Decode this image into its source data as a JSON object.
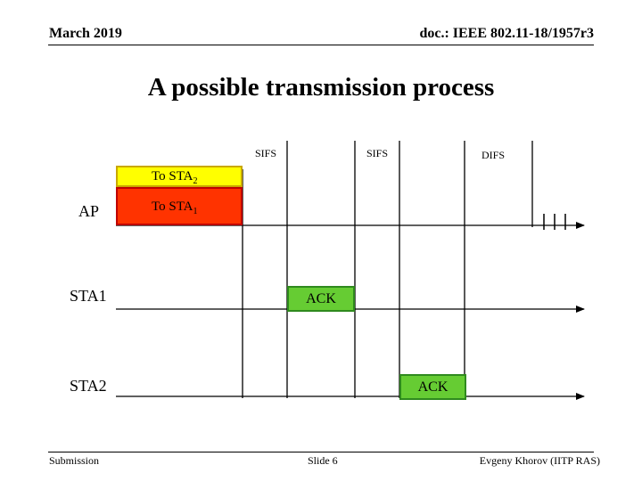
{
  "header": {
    "date": "March 2019",
    "doc_id": "doc.: IEEE 802.11-18/1957r3"
  },
  "title": "A possible transmission process",
  "intervals": {
    "sifs_1": "SIFS",
    "sifs_2": "SIFS",
    "difs": "DIFS"
  },
  "stations": {
    "ap": "AP",
    "sta1": "STA1",
    "sta2": "STA2"
  },
  "frames": {
    "to_sta2": {
      "text": "To STA",
      "sub": "2",
      "color": "#ffff00",
      "border": "#c9a800"
    },
    "to_sta1": {
      "text": "To STA",
      "sub": "1",
      "color": "#ff3300",
      "border": "#c00000"
    },
    "ack_sta1": {
      "text": "ACK",
      "color": "#66cc33",
      "border": "#2f8a1e"
    },
    "ack_sta2": {
      "text": "ACK",
      "color": "#66cc33",
      "border": "#2f8a1e"
    }
  },
  "footer": {
    "left": "Submission",
    "center": "Slide 6",
    "right": "Evgeny Khorov (IITP RAS)"
  }
}
